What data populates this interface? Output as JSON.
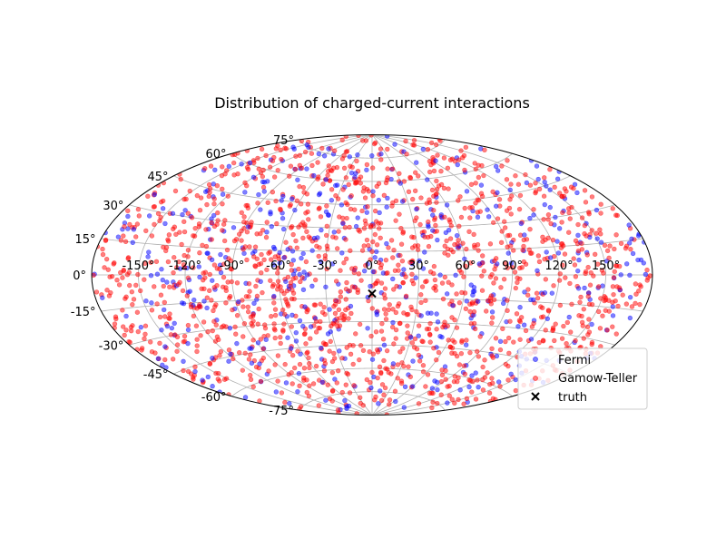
{
  "chart_data": {
    "type": "scatter",
    "projection": "aitoff",
    "title": "Distribution of charged-current interactions",
    "xlabel": "",
    "ylabel": "",
    "xlim": [
      -180,
      180
    ],
    "ylim": [
      -90,
      90
    ],
    "grid": true,
    "legend_position": "lower-right",
    "x_tick_labels": [
      "-150°",
      "-120°",
      "-90°",
      "-60°",
      "-30°",
      "0°",
      "30°",
      "60°",
      "90°",
      "120°",
      "150°"
    ],
    "y_tick_labels": [
      "-75°",
      "-60°",
      "-45°",
      "-30°",
      "-15°",
      "0°",
      "15°",
      "30°",
      "45°",
      "60°",
      "75°"
    ],
    "series": [
      {
        "name": "Fermi",
        "color": "#0000ff",
        "alpha": 0.5,
        "marker": "circle",
        "distribution": "uniform over sphere",
        "approx_count": 500,
        "sample_points": [
          [
            -170,
            20
          ],
          [
            -140,
            -35
          ],
          [
            -120,
            55
          ],
          [
            -95,
            10
          ],
          [
            -80,
            -60
          ],
          [
            -60,
            40
          ],
          [
            -45,
            -20
          ],
          [
            -20,
            65
          ],
          [
            10,
            -45
          ],
          [
            35,
            25
          ],
          [
            60,
            -70
          ],
          [
            85,
            50
          ],
          [
            110,
            -10
          ],
          [
            135,
            35
          ],
          [
            165,
            -25
          ],
          [
            175,
            5
          ]
        ]
      },
      {
        "name": "Gamow-Teller",
        "color": "#ff0000",
        "alpha": 0.5,
        "marker": "circle",
        "distribution": "uniform over sphere",
        "approx_count": 1500,
        "sample_points": [
          [
            -160,
            -10
          ],
          [
            -130,
            30
          ],
          [
            -100,
            -50
          ],
          [
            -75,
            5
          ],
          [
            -50,
            60
          ],
          [
            -25,
            -30
          ],
          [
            0,
            15
          ],
          [
            20,
            -5
          ],
          [
            45,
            45
          ],
          [
            70,
            -40
          ],
          [
            95,
            20
          ],
          [
            120,
            -60
          ],
          [
            145,
            10
          ],
          [
            170,
            -40
          ]
        ]
      },
      {
        "name": "truth",
        "color": "#000000",
        "marker": "x",
        "points": [
          [
            0,
            -12
          ]
        ]
      }
    ]
  }
}
